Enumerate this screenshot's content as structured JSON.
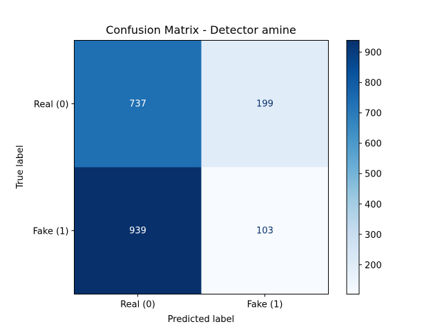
{
  "chart_data": {
    "type": "heatmap",
    "title": "Confusion Matrix - Detector amine",
    "xlabel": "Predicted label",
    "ylabel": "True label",
    "x_categories": [
      "Real (0)",
      "Fake (1)"
    ],
    "y_categories": [
      "Real (0)",
      "Fake (1)"
    ],
    "values": [
      [
        737,
        199
      ],
      [
        939,
        103
      ]
    ],
    "colormap": "Blues",
    "colorbar": {
      "ticks": [
        200,
        300,
        400,
        500,
        600,
        700,
        800,
        900
      ],
      "range": [
        103,
        939
      ]
    },
    "grid": false
  }
}
